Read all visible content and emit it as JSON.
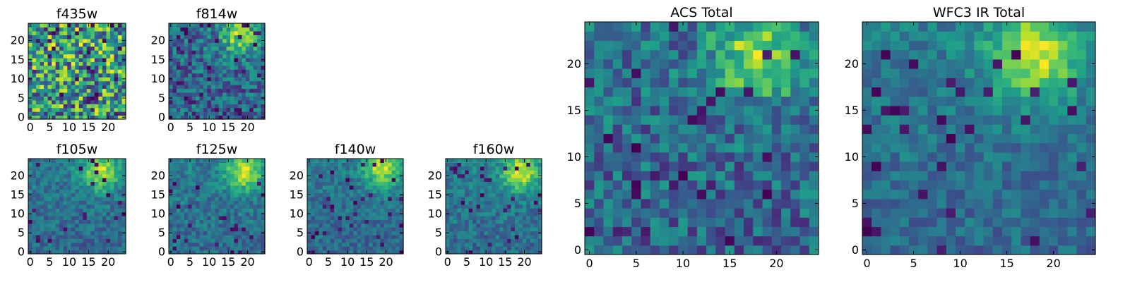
{
  "chart_data": [
    {
      "type": "heatmap",
      "title": "f435w",
      "grid_size": 25,
      "colormap": "viridis",
      "xlim": [
        -0.5,
        24.5
      ],
      "ylim": [
        -0.5,
        24.5
      ],
      "xticks": [
        0,
        5,
        10,
        15,
        20
      ],
      "yticks": [
        0,
        5,
        10,
        15,
        20
      ],
      "grid": false,
      "pattern": {
        "noise": 0.6,
        "hot_spots": [],
        "dark_fraction": 0.06
      }
    },
    {
      "type": "heatmap",
      "title": "f814w",
      "grid_size": 25,
      "colormap": "viridis",
      "xlim": [
        -0.5,
        24.5
      ],
      "ylim": [
        -0.5,
        24.5
      ],
      "xticks": [
        0,
        5,
        10,
        15,
        20
      ],
      "yticks": [
        0,
        5,
        10,
        15,
        20
      ],
      "grid": false,
      "pattern": {
        "noise": 0.55,
        "hot_spots": [
          [
            18,
            21
          ]
        ],
        "dark_fraction": 0.06
      }
    },
    {
      "type": "heatmap",
      "title": "f105w",
      "grid_size": 25,
      "colormap": "viridis",
      "xlim": [
        -0.5,
        24.5
      ],
      "ylim": [
        -0.5,
        24.5
      ],
      "xticks": [
        0,
        5,
        10,
        15,
        20
      ],
      "yticks": [
        0,
        5,
        10,
        15,
        20
      ],
      "grid": false,
      "pattern": {
        "noise": 0.3,
        "hot_spots": [
          [
            18,
            21
          ]
        ],
        "dark_fraction": 0.04
      }
    },
    {
      "type": "heatmap",
      "title": "f125w",
      "grid_size": 25,
      "colormap": "viridis",
      "xlim": [
        -0.5,
        24.5
      ],
      "ylim": [
        -0.5,
        24.5
      ],
      "xticks": [
        0,
        5,
        10,
        15,
        20
      ],
      "yticks": [
        0,
        5,
        10,
        15,
        20
      ],
      "grid": false,
      "pattern": {
        "noise": 0.3,
        "hot_spots": [
          [
            19,
            21
          ]
        ],
        "dark_fraction": 0.04
      }
    },
    {
      "type": "heatmap",
      "title": "f140w",
      "grid_size": 25,
      "colormap": "viridis",
      "xlim": [
        -0.5,
        24.5
      ],
      "ylim": [
        -0.5,
        24.5
      ],
      "xticks": [
        0,
        5,
        10,
        15,
        20
      ],
      "yticks": [
        0,
        5,
        10,
        15,
        20
      ],
      "grid": false,
      "pattern": {
        "noise": 0.3,
        "hot_spots": [
          [
            19,
            22
          ]
        ],
        "dark_fraction": 0.05
      }
    },
    {
      "type": "heatmap",
      "title": "f160w",
      "grid_size": 25,
      "colormap": "viridis",
      "xlim": [
        -0.5,
        24.5
      ],
      "ylim": [
        -0.5,
        24.5
      ],
      "xticks": [
        0,
        5,
        10,
        15,
        20
      ],
      "yticks": [
        0,
        5,
        10,
        15,
        20
      ],
      "grid": false,
      "pattern": {
        "noise": 0.3,
        "hot_spots": [
          [
            19,
            21
          ]
        ],
        "dark_fraction": 0.06
      }
    },
    {
      "type": "heatmap",
      "title": "ACS Total",
      "grid_size": 25,
      "colormap": "viridis",
      "xlim": [
        -0.5,
        24.5
      ],
      "ylim": [
        -0.5,
        24.5
      ],
      "xticks": [
        0,
        5,
        10,
        15,
        20
      ],
      "yticks": [
        0,
        5,
        10,
        15,
        20
      ],
      "grid": false,
      "pattern": {
        "noise": 0.5,
        "hot_spots": [
          [
            18,
            21
          ]
        ],
        "dark_fraction": 0.05
      }
    },
    {
      "type": "heatmap",
      "title": "WFC3 IR Total",
      "grid_size": 25,
      "colormap": "viridis",
      "xlim": [
        -0.5,
        24.5
      ],
      "ylim": [
        -0.5,
        24.5
      ],
      "xticks": [
        0,
        5,
        10,
        15,
        20
      ],
      "yticks": [
        0,
        5,
        10,
        15,
        20
      ],
      "grid": false,
      "pattern": {
        "noise": 0.28,
        "hot_spots": [
          [
            18,
            21
          ]
        ],
        "dark_fraction": 0.05
      }
    }
  ]
}
